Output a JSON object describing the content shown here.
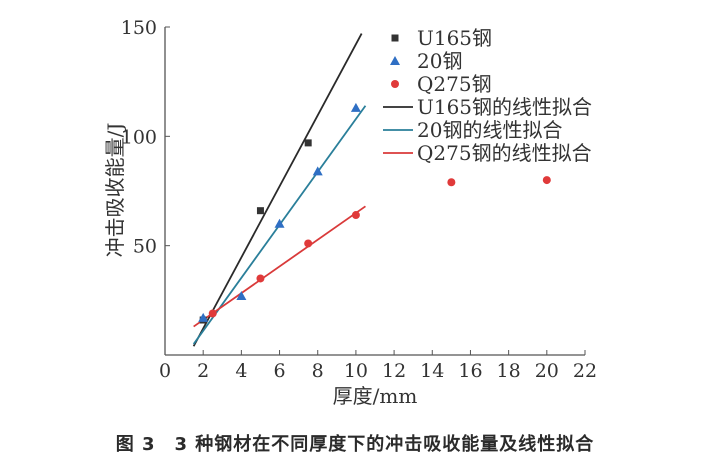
{
  "caption": "图 3　3 种钢材在不同厚度下的冲击吸收能量及线性拟合",
  "chart_data": {
    "type": "scatter",
    "title": "",
    "xlabel": "厚度/mm",
    "ylabel": "冲击吸收能量/J",
    "xlim": [
      0,
      22
    ],
    "ylim": [
      0,
      150
    ],
    "xticks": [
      0,
      2,
      4,
      6,
      8,
      10,
      12,
      14,
      16,
      18,
      20,
      22
    ],
    "yticks": [
      50,
      100,
      150
    ],
    "grid": false,
    "legend_position": "top-right",
    "series": [
      {
        "name": "U165钢",
        "marker": "square",
        "color": "#333333",
        "x": [
          2,
          5,
          7.5
        ],
        "y": [
          16,
          66,
          97
        ]
      },
      {
        "name": "20钢",
        "marker": "triangle",
        "color": "#2f6fc4",
        "x": [
          2,
          4,
          6,
          8,
          10
        ],
        "y": [
          17,
          27,
          60,
          84,
          113
        ]
      },
      {
        "name": "Q275钢",
        "marker": "circle",
        "color": "#e03a3a",
        "x": [
          2.5,
          5,
          7.5,
          10,
          15,
          20
        ],
        "y": [
          19,
          35,
          51,
          64,
          79,
          80
        ]
      }
    ],
    "fits": [
      {
        "name": "U165钢的线性拟合",
        "color": "#2a2a2a",
        "x": [
          1.5,
          10.3
        ],
        "y": [
          4,
          147
        ]
      },
      {
        "name": "20钢的线性拟合",
        "color": "#2a7f9a",
        "x": [
          1.5,
          10.5
        ],
        "y": [
          5,
          114
        ]
      },
      {
        "name": "Q275钢的线性拟合",
        "color": "#d93a3a",
        "x": [
          1.5,
          10.5
        ],
        "y": [
          13,
          68
        ]
      }
    ]
  }
}
